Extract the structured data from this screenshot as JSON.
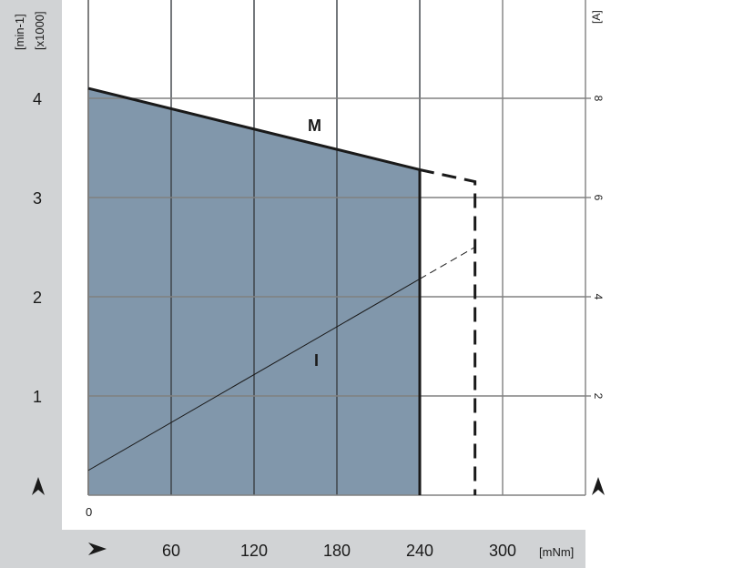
{
  "chart_data": {
    "type": "area",
    "xlabel": "[mNm]",
    "ylabel_left": [
      "[min-1]",
      "[x1000]"
    ],
    "ylabel_right": "[A]",
    "x_origin_label": "0",
    "xticks": [
      60,
      120,
      180,
      240,
      300
    ],
    "yticks_left": [
      1,
      2,
      3,
      4
    ],
    "yticks_right": [
      2,
      4,
      6,
      8
    ],
    "xlim": [
      0,
      360
    ],
    "ylim_left": [
      0,
      5
    ],
    "ylim_right": [
      0,
      10
    ],
    "grid": true,
    "colors": {
      "fill": "#8197ab",
      "band": "#d1d3d5",
      "line": "#1a1a1a",
      "grid": "#808080"
    },
    "series": [
      {
        "name": "M",
        "axis": "left",
        "solid": [
          [
            0,
            4.1
          ],
          [
            240,
            3.28
          ]
        ],
        "dashed": [
          [
            240,
            3.28
          ],
          [
            280,
            3.16
          ],
          [
            280,
            0
          ]
        ]
      },
      {
        "name": "I",
        "axis": "right",
        "solid": [
          [
            0,
            0.5
          ],
          [
            240,
            4.36
          ]
        ],
        "dashed": [
          [
            240,
            4.36
          ],
          [
            280,
            5.0
          ]
        ]
      }
    ],
    "shaded_region": {
      "x_max": 240
    }
  }
}
